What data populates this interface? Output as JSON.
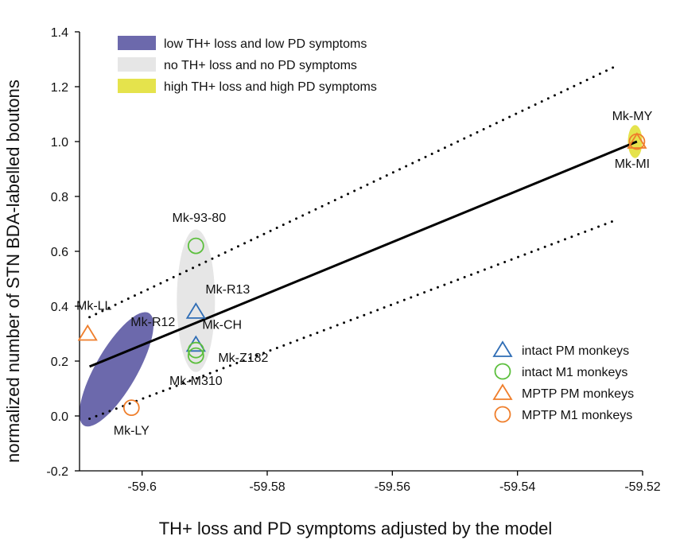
{
  "chart_data": {
    "type": "scatter",
    "xlabel": "TH+ loss and PD symptoms adjusted by the model",
    "ylabel": "normalized number of STN BDA-labelled boutons",
    "xlim": [
      -59.61,
      -59.52
    ],
    "ylim": [
      -0.2,
      1.4
    ],
    "xticks": [
      -59.6,
      -59.58,
      -59.56,
      -59.54,
      -59.52
    ],
    "xtick_labels": [
      "-59.6",
      "-59.58",
      "-59.56",
      "-59.54",
      "-59.52"
    ],
    "yticks": [
      -0.2,
      0.0,
      0.2,
      0.4,
      0.6,
      0.8,
      1.0,
      1.2,
      1.4
    ],
    "ytick_labels": [
      "-0.2",
      "0.0",
      "0.2",
      "0.4",
      "0.6",
      "0.8",
      "1.0",
      "1.2",
      "1.4"
    ],
    "fit_line": {
      "x": [
        -59.6084,
        -59.5209
      ],
      "y": [
        0.18,
        1.0
      ]
    },
    "ci_upper": {
      "x": [
        -59.6084,
        -59.5247
      ],
      "y": [
        0.36,
        1.27
      ]
    },
    "ci_lower": {
      "x": [
        -59.6084,
        -59.5247
      ],
      "y": [
        -0.01,
        0.71
      ]
    },
    "groups": [
      {
        "label": "low TH+ loss and low PD symptoms",
        "color": "#6c69ac",
        "center": [
          -59.6041,
          0.17
        ],
        "span_x": [
          -59.6097,
          -59.5986
        ],
        "span_y": [
          -0.03,
          0.37
        ],
        "rotation_deg": -60
      },
      {
        "label": "no TH+ loss and no PD symptoms",
        "color": "#e6e6e6",
        "center": [
          -59.5914,
          0.42
        ],
        "span_x": [
          -59.5944,
          -59.5883
        ],
        "span_y": [
          0.16,
          0.68
        ],
        "rotation_deg": 0
      },
      {
        "label": "high TH+ loss and high PD symptoms",
        "color": "#e5e34c",
        "center": [
          -59.5212,
          1.0
        ],
        "span_x": [
          -59.5224,
          -59.5201
        ],
        "span_y": [
          0.94,
          1.06
        ],
        "rotation_deg": 0
      }
    ],
    "series": [
      {
        "name": "intact PM monkeys",
        "marker": "triangle",
        "color": "#2f6db5",
        "points": [
          {
            "id": "Mk-R13",
            "x": -59.5914,
            "y": 0.38
          },
          {
            "id": "Mk-CH",
            "x": -59.5914,
            "y": 0.26
          }
        ]
      },
      {
        "name": "intact M1 monkeys",
        "marker": "circle",
        "color": "#5cbf3d",
        "points": [
          {
            "id": "Mk-93-80",
            "x": -59.5914,
            "y": 0.62
          },
          {
            "id": "Mk-Z182",
            "x": -59.5914,
            "y": 0.24
          },
          {
            "id": "Mk-M310",
            "x": -59.5914,
            "y": 0.22
          }
        ]
      },
      {
        "name": "MPTP PM monkeys",
        "marker": "triangle",
        "color": "#ef7e2b",
        "points": [
          {
            "id": "Mk-LL",
            "x": -59.6087,
            "y": 0.3
          },
          {
            "id": "Mk-MY",
            "x": -59.5209,
            "y": 1.0
          }
        ]
      },
      {
        "name": "MPTP M1 monkeys",
        "marker": "circle",
        "color": "#ef7e2b",
        "points": [
          {
            "id": "Mk-LY",
            "x": -59.6017,
            "y": 0.03
          },
          {
            "id": "Mk-MI",
            "x": -59.5209,
            "y": 1.0
          }
        ]
      }
    ],
    "point_labels": [
      {
        "text": "Mk-MY",
        "x": -59.5209,
        "y": 1.0,
        "side": "above"
      },
      {
        "text": "Mk-MI",
        "x": -59.5209,
        "y": 1.0,
        "side": "below"
      },
      {
        "text": "Mk-93-80",
        "x": -59.5914,
        "y": 0.62,
        "side": "above"
      },
      {
        "text": "Mk-R13",
        "x": -59.5914,
        "y": 0.38,
        "side": "upper-right"
      },
      {
        "text": "Mk-LL",
        "x": -59.6087,
        "y": 0.3,
        "side": "above"
      },
      {
        "text": "Mk-R12",
        "x": -59.5914,
        "y": 0.38,
        "side": "left"
      },
      {
        "text": "Mk-CH",
        "x": -59.5914,
        "y": 0.26,
        "side": "upper-right"
      },
      {
        "text": "Mk-Z182",
        "x": -59.5914,
        "y": 0.22,
        "side": "right"
      },
      {
        "text": "Mk-M310",
        "x": -59.5914,
        "y": 0.22,
        "side": "below"
      },
      {
        "text": "Mk-LY",
        "x": -59.6017,
        "y": 0.03,
        "side": "below"
      }
    ],
    "group_legend_position": "top-left",
    "marker_legend_position": "bottom-right"
  }
}
